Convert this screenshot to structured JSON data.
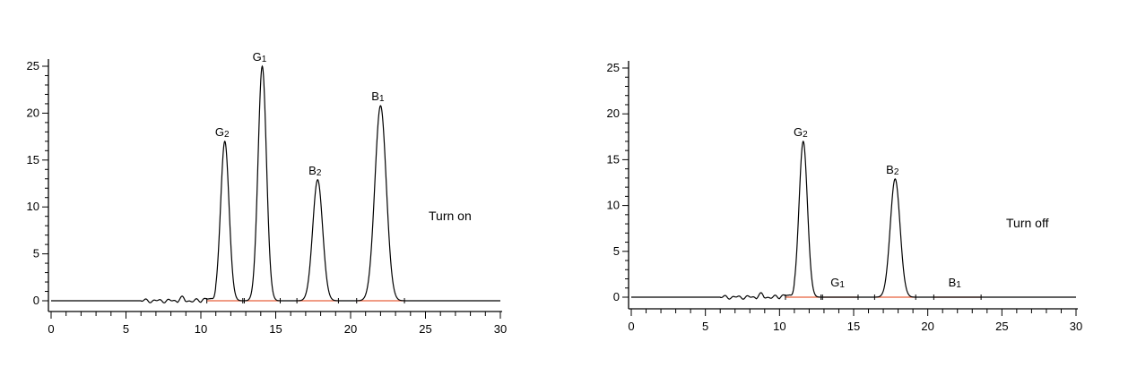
{
  "chart_data": [
    {
      "type": "line",
      "title": "",
      "xlabel": "",
      "ylabel": "",
      "xlim": [
        0,
        30
      ],
      "ylim": [
        0,
        25
      ],
      "x_ticks": [
        "0",
        "5",
        "10",
        "15",
        "20",
        "25",
        "30"
      ],
      "y_ticks": [
        "0",
        "5",
        "10",
        "15",
        "20",
        "25"
      ],
      "grid": false,
      "annotation": "Turn on",
      "peaks": [
        {
          "name": "G",
          "sub": "2",
          "x": 11.6,
          "height": 17.0,
          "width": 0.28
        },
        {
          "name": "G",
          "sub": "1",
          "x": 14.1,
          "height": 25.0,
          "width": 0.28
        },
        {
          "name": "B",
          "sub": "2",
          "x": 17.8,
          "height": 12.9,
          "width": 0.33
        },
        {
          "name": "B",
          "sub": "1",
          "x": 22.0,
          "height": 20.8,
          "width": 0.38
        }
      ]
    },
    {
      "type": "line",
      "title": "",
      "xlabel": "",
      "ylabel": "",
      "xlim": [
        0,
        30
      ],
      "ylim": [
        0,
        25
      ],
      "x_ticks": [
        "0",
        "5",
        "10",
        "15",
        "20",
        "25",
        "30"
      ],
      "y_ticks": [
        "0",
        "5",
        "10",
        "15",
        "20",
        "25"
      ],
      "grid": false,
      "annotation": "Turn off",
      "peaks": [
        {
          "name": "G",
          "sub": "2",
          "x": 11.6,
          "height": 17.0,
          "width": 0.28
        },
        {
          "name": "G",
          "sub": "1",
          "x": 14.1,
          "height": 0.0,
          "width": 0.28
        },
        {
          "name": "B",
          "sub": "2",
          "x": 17.8,
          "height": 12.9,
          "width": 0.33
        },
        {
          "name": "B",
          "sub": "1",
          "x": 22.0,
          "height": 0.0,
          "width": 0.38
        }
      ]
    }
  ],
  "colors": {
    "trace": "#000000",
    "baseline_segment": "#e8603c",
    "axis": "#000000"
  }
}
